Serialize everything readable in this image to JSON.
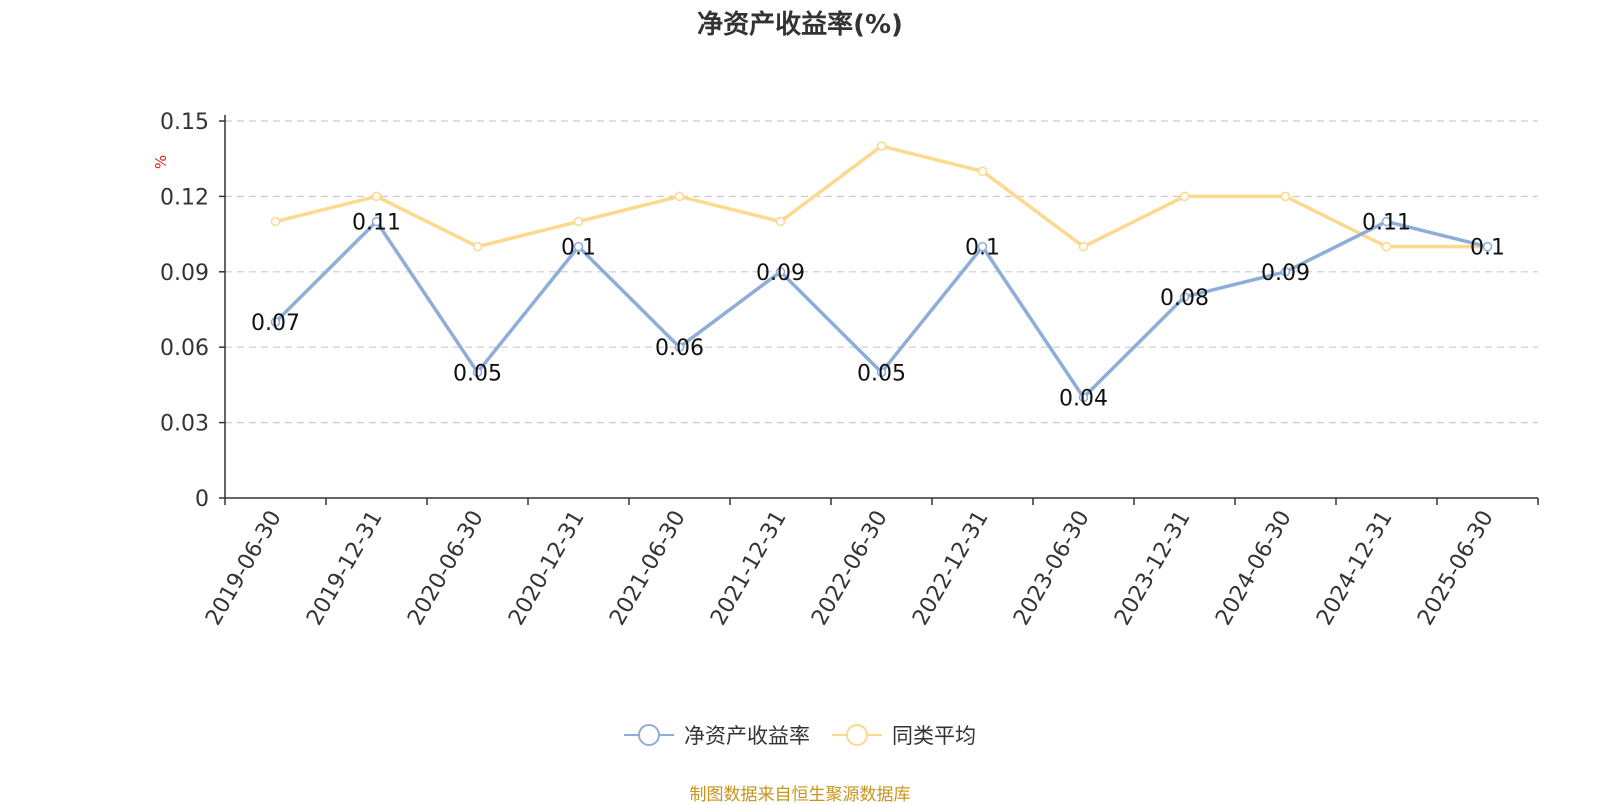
{
  "title": "净资产收益率(%)",
  "source_note": "制图数据来自恒生聚源数据库",
  "colors": {
    "series1": "#8eadd8",
    "series2": "#fdd88f",
    "unit": "#e02020",
    "axis": "#333333",
    "grid": "#cccccc"
  },
  "chart_data": {
    "type": "line",
    "title": "净资产收益率(%)",
    "ylabel": "%",
    "ylim": [
      0,
      0.15
    ],
    "yticks": [
      0,
      0.03,
      0.06,
      0.09,
      0.12,
      0.15
    ],
    "ytick_labels": [
      "0",
      "0.03",
      "0.06",
      "0.09",
      "0.12",
      "0.15"
    ],
    "grid": true,
    "legend_position": "bottom",
    "categories": [
      "2019-06-30",
      "2019-12-31",
      "2020-06-30",
      "2020-12-31",
      "2021-06-30",
      "2021-12-31",
      "2022-06-30",
      "2022-12-31",
      "2023-06-30",
      "2023-12-31",
      "2024-06-30",
      "2024-12-31",
      "2025-06-30"
    ],
    "series": [
      {
        "name": "净资产收益率",
        "values": [
          0.07,
          0.11,
          0.05,
          0.1,
          0.06,
          0.09,
          0.05,
          0.1,
          0.04,
          0.08,
          0.09,
          0.11,
          0.1
        ],
        "data_labels": [
          "0.07",
          "0.11",
          "0.05",
          "0.1",
          "0.06",
          "0.09",
          "0.05",
          "0.1",
          "0.04",
          "0.08",
          "0.09",
          "0.11",
          "0.1"
        ]
      },
      {
        "name": "同类平均",
        "values": [
          0.11,
          0.12,
          0.1,
          0.11,
          0.12,
          0.11,
          0.14,
          0.13,
          0.1,
          0.12,
          0.12,
          0.1,
          0.1
        ]
      }
    ]
  }
}
